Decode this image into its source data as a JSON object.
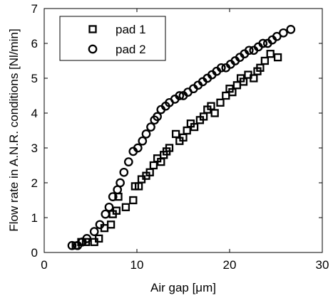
{
  "chart_data": {
    "type": "scatter",
    "xlabel": "Air gap [μm]",
    "ylabel": "Flow rate in A.N.R. conditions [Nl/min]",
    "xlim": [
      0,
      30
    ],
    "ylim": [
      0,
      7
    ],
    "xticks": [
      "0",
      "10",
      "20",
      "30"
    ],
    "yticks": [
      "0",
      "1",
      "2",
      "3",
      "4",
      "5",
      "6",
      "7"
    ],
    "grid": false,
    "legend_position": "top-left",
    "series": [
      {
        "name": "pad 1",
        "marker": "square",
        "x": [
          3.4,
          4.0,
          4.5,
          5.4,
          5.9,
          6.5,
          7.2,
          7.4,
          7.8,
          8.0,
          8.8,
          9.6,
          9.8,
          10.2,
          10.5,
          11.0,
          11.4,
          11.8,
          12.2,
          12.6,
          12.9,
          13.2,
          13.5,
          14.2,
          14.6,
          15.0,
          15.4,
          15.8,
          16.2,
          16.8,
          17.2,
          17.6,
          18.0,
          18.4,
          19.0,
          19.6,
          20.0,
          20.3,
          20.8,
          21.2,
          21.5,
          22.0,
          22.6,
          23.0,
          23.3,
          23.8,
          24.4,
          25.2
        ],
        "y": [
          0.2,
          0.3,
          0.3,
          0.3,
          0.4,
          0.7,
          0.8,
          1.1,
          1.2,
          1.6,
          1.3,
          1.5,
          1.9,
          1.9,
          2.1,
          2.2,
          2.3,
          2.5,
          2.7,
          2.6,
          2.8,
          2.9,
          3.0,
          3.4,
          3.2,
          3.3,
          3.5,
          3.7,
          3.6,
          3.8,
          3.9,
          4.1,
          4.2,
          4.0,
          4.3,
          4.5,
          4.7,
          4.6,
          4.8,
          5.0,
          4.9,
          5.1,
          5.0,
          5.2,
          5.3,
          5.5,
          5.7,
          5.6
        ]
      },
      {
        "name": "pad 2",
        "marker": "circle",
        "x": [
          3.0,
          3.6,
          4.1,
          4.6,
          5.4,
          6.0,
          6.6,
          7.0,
          7.4,
          7.9,
          8.2,
          8.6,
          9.1,
          9.6,
          10.1,
          10.6,
          11.0,
          11.5,
          11.9,
          12.2,
          12.6,
          13.1,
          13.5,
          14.1,
          14.6,
          15.0,
          15.5,
          16.1,
          16.6,
          17.1,
          17.6,
          18.1,
          18.6,
          19.1,
          19.6,
          20.1,
          20.6,
          21.1,
          21.6,
          22.1,
          22.6,
          23.1,
          23.6,
          24.1,
          24.6,
          25.1,
          25.8,
          26.6
        ],
        "y": [
          0.2,
          0.2,
          0.3,
          0.4,
          0.6,
          0.8,
          1.1,
          1.3,
          1.6,
          1.8,
          2.0,
          2.3,
          2.6,
          2.9,
          3.0,
          3.2,
          3.4,
          3.6,
          3.8,
          3.9,
          4.1,
          4.2,
          4.3,
          4.4,
          4.5,
          4.5,
          4.6,
          4.7,
          4.8,
          4.9,
          5.0,
          5.1,
          5.2,
          5.3,
          5.3,
          5.4,
          5.5,
          5.6,
          5.7,
          5.8,
          5.8,
          5.9,
          6.0,
          6.0,
          6.1,
          6.2,
          6.3,
          6.4
        ]
      }
    ]
  }
}
